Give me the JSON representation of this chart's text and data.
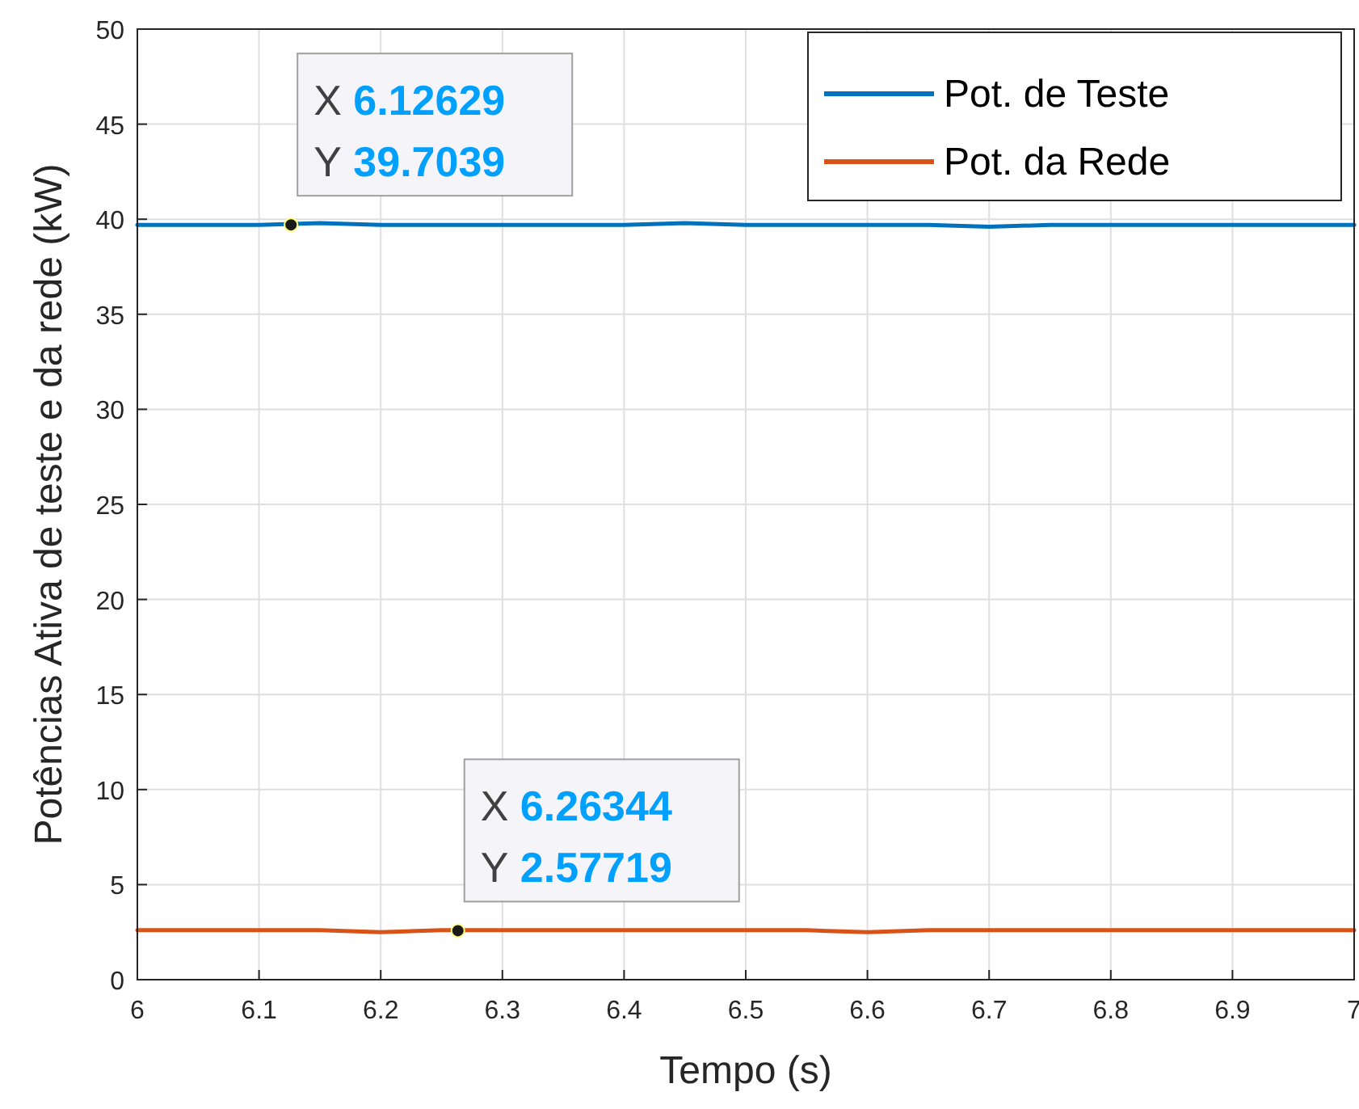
{
  "chart_data": {
    "type": "line",
    "xlabel": "Tempo (s)",
    "ylabel": "Potências Ativa de teste e da rede (kW)",
    "x": [
      6.0,
      6.05,
      6.1,
      6.15,
      6.2,
      6.25,
      6.3,
      6.35,
      6.4,
      6.45,
      6.5,
      6.55,
      6.6,
      6.65,
      6.7,
      6.75,
      6.8,
      6.85,
      6.9,
      6.95,
      7.0
    ],
    "series": [
      {
        "name": "Pot. de Teste",
        "color": "#0072bd",
        "values": [
          39.7,
          39.7,
          39.7,
          39.8,
          39.7,
          39.7,
          39.7,
          39.7,
          39.7,
          39.8,
          39.7,
          39.7,
          39.7,
          39.7,
          39.6,
          39.7,
          39.7,
          39.7,
          39.7,
          39.7,
          39.7
        ]
      },
      {
        "name": "Pot. da Rede",
        "color": "#d95319",
        "values": [
          2.6,
          2.6,
          2.6,
          2.6,
          2.5,
          2.6,
          2.6,
          2.6,
          2.6,
          2.6,
          2.6,
          2.6,
          2.5,
          2.6,
          2.6,
          2.6,
          2.6,
          2.6,
          2.6,
          2.6,
          2.6
        ]
      }
    ],
    "xlim": [
      6,
      7
    ],
    "xticks": [
      6,
      6.1,
      6.2,
      6.3,
      6.4,
      6.5,
      6.6,
      6.7,
      6.8,
      6.9,
      7
    ],
    "ylim": [
      0,
      50
    ],
    "yticks": [
      0,
      5,
      10,
      15,
      20,
      25,
      30,
      35,
      40,
      45,
      50
    ],
    "grid": true,
    "legend": "top right",
    "line_style": "solid",
    "annotations": [
      {
        "text": "X 6.12629\nY 39.7039",
        "x": 6.12629,
        "y": 39.7039
      },
      {
        "text": "X 6.26344\nY 2.57719",
        "x": 6.26344,
        "y": 2.57719
      }
    ]
  }
}
